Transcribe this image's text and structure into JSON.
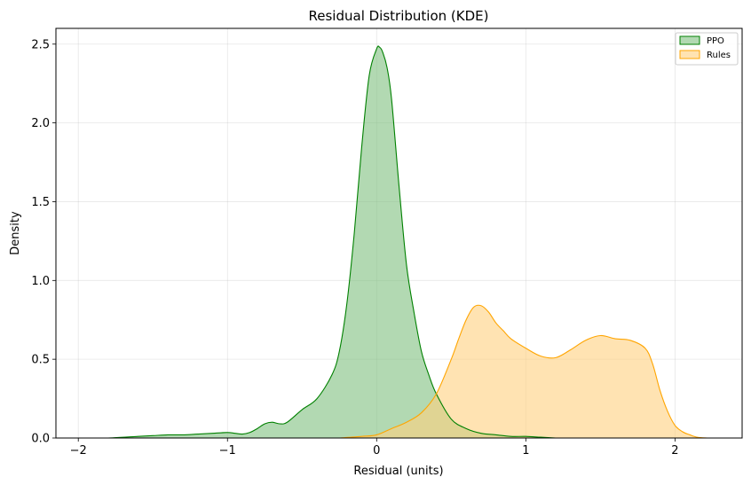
{
  "chart_data": {
    "type": "area",
    "title": "Residual Distribution (KDE)",
    "xlabel": "Residual (units)",
    "ylabel": "Density",
    "xlim": [
      -2.15,
      2.45
    ],
    "ylim": [
      0,
      2.6
    ],
    "xticks": [
      -2,
      -1,
      0,
      1,
      2
    ],
    "xtick_labels": [
      "−2",
      "−1",
      "0",
      "1",
      "2"
    ],
    "yticks": [
      0,
      0.5,
      1.0,
      1.5,
      2.0,
      2.5
    ],
    "ytick_labels": [
      "0.0",
      "0.5",
      "1.0",
      "1.5",
      "2.0",
      "2.5"
    ],
    "grid": true,
    "legend_position": "top-right",
    "series": [
      {
        "name": "PPO",
        "line_color": "#008000",
        "fill_color": "#7fbf7f",
        "fill_opacity": 0.6,
        "x": [
          -1.95,
          -1.8,
          -1.6,
          -1.5,
          -1.4,
          -1.3,
          -1.2,
          -1.1,
          -1.0,
          -0.95,
          -0.9,
          -0.85,
          -0.8,
          -0.75,
          -0.7,
          -0.65,
          -0.6,
          -0.5,
          -0.4,
          -0.3,
          -0.25,
          -0.2,
          -0.15,
          -0.1,
          -0.05,
          0.0,
          0.02,
          0.04,
          0.07,
          0.1,
          0.15,
          0.2,
          0.25,
          0.3,
          0.35,
          0.4,
          0.5,
          0.6,
          0.7,
          0.8,
          0.9,
          1.0,
          1.1,
          1.2
        ],
        "y": [
          0.0,
          0.0,
          0.01,
          0.015,
          0.02,
          0.02,
          0.025,
          0.03,
          0.035,
          0.03,
          0.025,
          0.035,
          0.06,
          0.09,
          0.1,
          0.09,
          0.1,
          0.18,
          0.25,
          0.4,
          0.55,
          0.85,
          1.3,
          1.85,
          2.3,
          2.47,
          2.48,
          2.45,
          2.35,
          2.15,
          1.6,
          1.1,
          0.8,
          0.55,
          0.4,
          0.28,
          0.12,
          0.06,
          0.03,
          0.02,
          0.01,
          0.01,
          0.005,
          0.0
        ]
      },
      {
        "name": "Rules",
        "line_color": "#ffa500",
        "fill_color": "#ffd17f",
        "fill_opacity": 0.6,
        "x": [
          -0.25,
          -0.1,
          0.0,
          0.1,
          0.2,
          0.3,
          0.4,
          0.5,
          0.55,
          0.6,
          0.65,
          0.7,
          0.75,
          0.8,
          0.85,
          0.9,
          1.0,
          1.1,
          1.2,
          1.3,
          1.4,
          1.5,
          1.6,
          1.7,
          1.8,
          1.85,
          1.9,
          1.95,
          2.0,
          2.05,
          2.1,
          2.15,
          2.22
        ],
        "y": [
          0.0,
          0.01,
          0.02,
          0.06,
          0.1,
          0.16,
          0.28,
          0.5,
          0.63,
          0.75,
          0.83,
          0.84,
          0.8,
          0.73,
          0.68,
          0.63,
          0.57,
          0.52,
          0.51,
          0.56,
          0.62,
          0.65,
          0.63,
          0.62,
          0.57,
          0.47,
          0.3,
          0.17,
          0.08,
          0.04,
          0.02,
          0.005,
          0.0
        ]
      }
    ]
  }
}
